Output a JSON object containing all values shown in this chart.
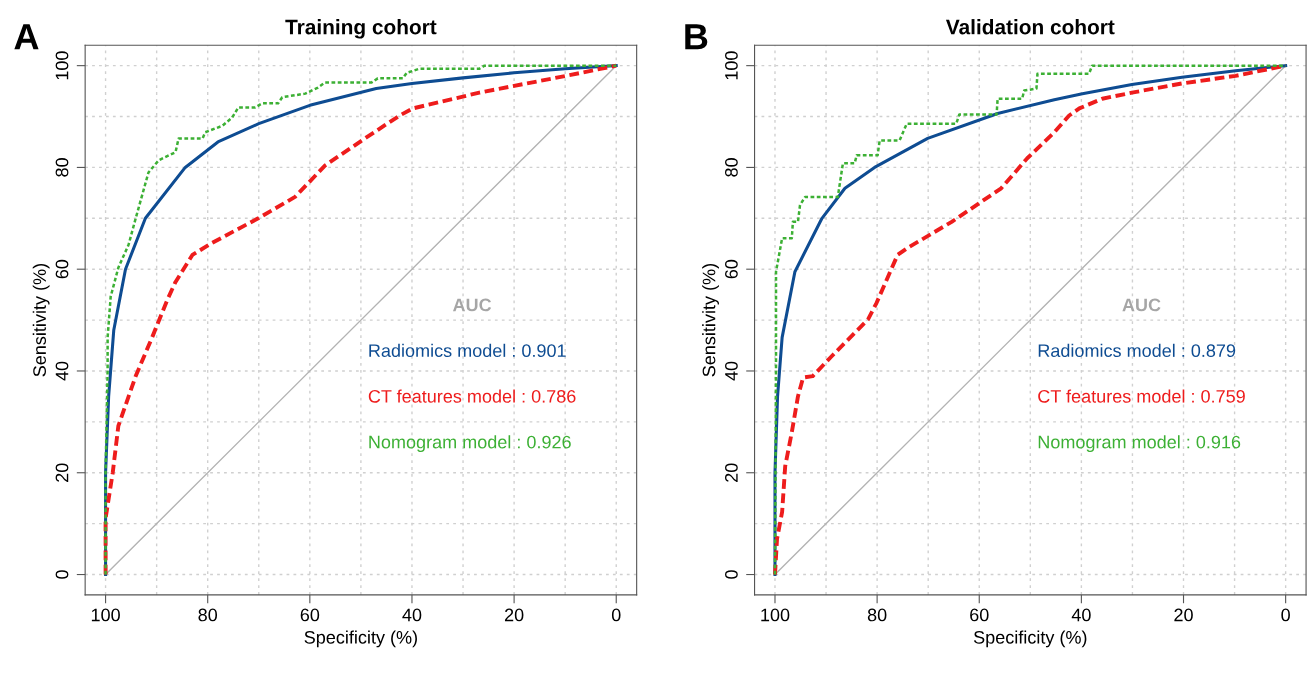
{
  "chart_data": [
    {
      "type": "line",
      "title": "Training cohort",
      "xlabel": "Specificity (%)",
      "ylabel": "Sensitivity (%)",
      "legend_title": "AUC",
      "annotations": [
        "A"
      ],
      "xlim": [
        104,
        -4
      ],
      "ylim": [
        -4,
        104
      ],
      "xticks": [
        100,
        80,
        60,
        40,
        20,
        0
      ],
      "yticks": [
        0,
        20,
        40,
        60,
        80,
        100
      ],
      "grid": true,
      "legend": "right",
      "line_style": "solid",
      "marker": "none",
      "series": [
        {
          "name": null,
          "color": "#b3b3b3",
          "x": [
            100,
            0
          ],
          "values": [
            0,
            100
          ]
        },
        {
          "name": "Radiomics model : 0.901",
          "color": "#0e4c92",
          "line_style": "solid",
          "x": [
            100,
            100,
            99.4,
            98.4,
            96.1,
            92.2,
            84.4,
            78,
            70,
            60,
            47,
            40,
            30,
            20,
            10,
            0
          ],
          "values": [
            0,
            20,
            35,
            48,
            60,
            70,
            80,
            85,
            88.6,
            92.2,
            95.5,
            96.5,
            97.6,
            98.6,
            99.4,
            100
          ]
        },
        {
          "name": "CT features model : 0.786",
          "color": "#ee1c1c",
          "line_style": "dashed",
          "x": [
            100,
            100,
            98.6,
            97.5,
            94.1,
            90.8,
            87.9,
            86.3,
            83,
            79.1,
            70.1,
            62.9,
            57,
            49.8,
            45.3,
            42.4,
            39.8,
            26.8,
            9.8,
            0
          ],
          "values": [
            0,
            11,
            20,
            29.2,
            39,
            46.8,
            54,
            57.5,
            62.8,
            65.2,
            70,
            74.2,
            80.4,
            85.3,
            88.3,
            90.2,
            91.6,
            94.7,
            98,
            100
          ]
        },
        {
          "name": "Nomogram model : 0.926",
          "color": "#3cb034",
          "line_style": "dotted",
          "x": [
            100,
            100,
            99.6,
            99.6,
            99,
            97.5,
            95.5,
            94.1,
            91.6,
            89.6,
            86.3,
            85.7,
            81,
            80.5,
            77.1,
            75.2,
            74,
            70.7,
            69.3,
            66.2,
            65.4,
            60.9,
            58.4,
            57,
            47.9,
            46.7,
            41.8,
            41,
            38.5,
            26.8,
            25.8,
            0
          ],
          "values": [
            0,
            20,
            40,
            46.6,
            54.6,
            60.3,
            64.8,
            70,
            79,
            81.4,
            83,
            85.7,
            85.7,
            86.9,
            88.2,
            89.8,
            91.8,
            91.8,
            92.6,
            92.6,
            93.8,
            94.5,
            95.7,
            96.7,
            96.7,
            97.5,
            97.5,
            98.6,
            99.4,
            99.4,
            100,
            100
          ]
        }
      ]
    },
    {
      "type": "line",
      "title": "Validation cohort",
      "xlabel": "Specificity (%)",
      "ylabel": "Sensitivity (%)",
      "legend_title": "AUC",
      "annotations": [
        "B"
      ],
      "xlim": [
        104,
        -4
      ],
      "ylim": [
        -4,
        104
      ],
      "xticks": [
        100,
        80,
        60,
        40,
        20,
        0
      ],
      "yticks": [
        0,
        20,
        40,
        60,
        80,
        100
      ],
      "grid": true,
      "legend": "right",
      "line_style": "solid",
      "marker": "none",
      "series": [
        {
          "name": null,
          "color": "#b3b3b3",
          "x": [
            100,
            0
          ],
          "values": [
            0,
            100
          ]
        },
        {
          "name": "Radiomics model : 0.879",
          "color": "#0e4c92",
          "line_style": "solid",
          "x": [
            100,
            100,
            99.5,
            98.6,
            96.1,
            90.8,
            86.3,
            80.5,
            70.1,
            56.4,
            45.3,
            39.8,
            30.1,
            20.3,
            9.8,
            0
          ],
          "values": [
            0,
            20,
            35,
            46.6,
            59.5,
            70,
            75.9,
            80,
            85.7,
            90.6,
            93.3,
            94.5,
            96.3,
            97.7,
            99,
            100
          ]
        },
        {
          "name": "CT features model : 0.759",
          "color": "#ee1c1c",
          "line_style": "dashed",
          "x": [
            100,
            99.6,
            98.6,
            98,
            96.7,
            95.5,
            94.5,
            92.6,
            88.9,
            81.8,
            80.1,
            76,
            74,
            65.4,
            55.7,
            50.6,
            45.3,
            42.4,
            40.4,
            35.9,
            30.1,
            20.3,
            9.8,
            0
          ],
          "values": [
            0,
            7,
            12.3,
            21.3,
            28,
            35,
            38.7,
            39,
            42.9,
            50.1,
            53.4,
            62.8,
            64.2,
            69.3,
            75.9,
            81.8,
            86.9,
            90.2,
            91.6,
            93.5,
            94.7,
            96.5,
            98,
            100
          ]
        },
        {
          "name": "Nomogram model : 0.916",
          "color": "#3cb034",
          "line_style": "dotted",
          "x": [
            100,
            99.8,
            99.8,
            98.6,
            98.6,
            96.7,
            96.5,
            95.5,
            95.1,
            94.1,
            87.7,
            86.7,
            84.4,
            84,
            79.9,
            79.5,
            75.6,
            74.2,
            64.5,
            63.9,
            56.6,
            56.4,
            51.6,
            51.2,
            48.8,
            48.6,
            38.5,
            37.9,
            0
          ],
          "values": [
            0,
            40,
            59.5,
            66.1,
            66.1,
            66.1,
            69.3,
            69.3,
            72.6,
            74.2,
            74.2,
            80.8,
            80.8,
            82.4,
            82.4,
            85.3,
            85.3,
            88.6,
            88.6,
            90.4,
            90.4,
            93.5,
            93.5,
            95.1,
            95.5,
            98.4,
            98.4,
            100,
            100
          ]
        }
      ]
    }
  ]
}
